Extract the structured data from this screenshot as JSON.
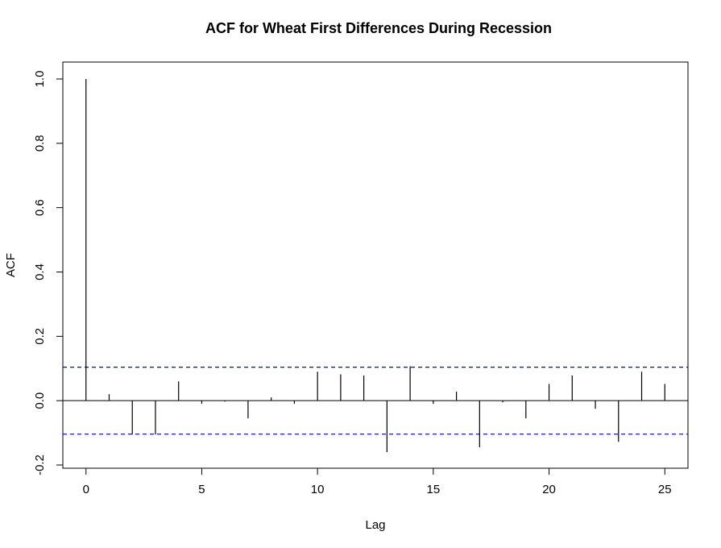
{
  "chart_data": {
    "type": "bar",
    "title": "ACF for Wheat First Differences During Recession",
    "xlabel": "Lag",
    "ylabel": "ACF",
    "x": [
      0,
      1,
      2,
      3,
      4,
      5,
      6,
      7,
      8,
      9,
      10,
      11,
      12,
      13,
      14,
      15,
      16,
      17,
      18,
      19,
      20,
      21,
      22,
      23,
      24,
      25
    ],
    "values": [
      1.0,
      0.02,
      -0.105,
      -0.105,
      0.06,
      -0.01,
      -0.003,
      -0.055,
      0.01,
      -0.01,
      0.09,
      0.082,
      0.078,
      -0.16,
      0.107,
      -0.01,
      0.028,
      -0.145,
      -0.005,
      -0.055,
      0.052,
      0.078,
      -0.025,
      -0.128,
      0.09,
      0.052
    ],
    "confidence_bound": 0.104,
    "xlim": [
      -1,
      26
    ],
    "ylim": [
      -0.2,
      1.0
    ],
    "xticks": [
      "0",
      "5",
      "10",
      "15",
      "20",
      "25"
    ],
    "yticks": [
      "-0.2",
      "0.0",
      "0.2",
      "0.4",
      "0.6",
      "0.8",
      "1.0"
    ],
    "confidence_color": "#0000ff",
    "line_color": "#000000",
    "grid": false
  }
}
